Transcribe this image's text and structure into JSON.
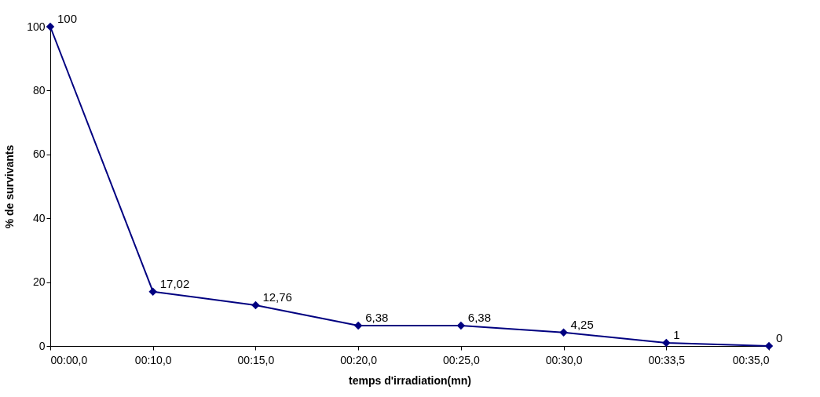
{
  "chart_data": {
    "type": "line",
    "xlabel": "temps d'irradiation(mn)",
    "ylabel": "% de survivants",
    "categories": [
      "00:00,0",
      "00:10,0",
      "00:15,0",
      "00:20,0",
      "00:25,0",
      "00:30,0",
      "00:33,5",
      "00:35,0"
    ],
    "series": [
      {
        "color": "#000080",
        "values": [
          100,
          17.02,
          12.76,
          6.38,
          6.38,
          4.25,
          1,
          0
        ],
        "value_labels": [
          "100",
          "17,02",
          "12,76",
          "6,38",
          "6,38",
          "4,25",
          "1",
          "0"
        ]
      }
    ],
    "ylim": [
      0,
      100
    ],
    "yticks": [
      0,
      20,
      40,
      60,
      80,
      100
    ],
    "grid": false,
    "marker": "diamond",
    "line_style": "solid"
  }
}
